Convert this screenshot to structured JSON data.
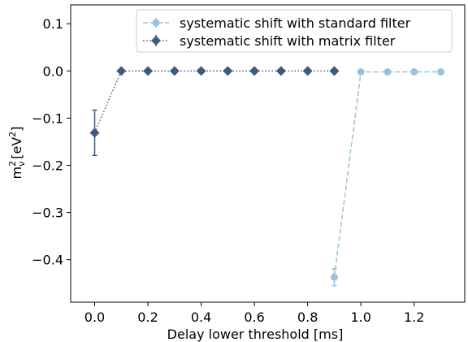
{
  "chart_data": {
    "type": "line",
    "xlabel": "Delay lower threshold [ms]",
    "ylabel": "m",
    "ylabel_super": "2",
    "ylabel_sub": "ν",
    "ylabel_units_open": "[eV",
    "ylabel_units_super": "2",
    "ylabel_units_close": "]",
    "xlim": [
      -0.09,
      1.39
    ],
    "ylim": [
      -0.49,
      0.14
    ],
    "xticks": [
      0.0,
      0.2,
      0.4,
      0.6,
      0.8,
      1.0,
      1.2
    ],
    "xtick_labels": [
      "0.0",
      "0.2",
      "0.4",
      "0.6",
      "0.8",
      "1.0",
      "1.2"
    ],
    "yticks": [
      0.1,
      0.0,
      -0.1,
      -0.2,
      -0.3,
      -0.4
    ],
    "ytick_labels": [
      "0.1",
      "0.0",
      "−0.1",
      "−0.2",
      "−0.3",
      "−0.4"
    ],
    "grid": false,
    "legend_position": "top-right",
    "series": [
      {
        "name": "systematic shift with standard filter",
        "color": "#9bc2dc",
        "marker": "circle",
        "linestyle": "dashed",
        "x": [
          0.9,
          1.0,
          1.1,
          1.2,
          1.3
        ],
        "y": [
          -0.437,
          -0.002,
          -0.002,
          -0.002,
          -0.002
        ],
        "yerr": [
          0.018,
          0.003,
          0.003,
          0.003,
          0.003
        ]
      },
      {
        "name": "systematic shift with matrix filter",
        "color": "#3d5a80",
        "marker": "diamond",
        "linestyle": "dotted",
        "x": [
          0.0,
          0.1,
          0.2,
          0.3,
          0.4,
          0.5,
          0.6,
          0.7,
          0.8,
          0.9
        ],
        "y": [
          -0.131,
          0.0,
          0.0,
          0.0,
          0.0,
          0.0,
          0.0,
          0.0,
          0.0,
          0.0
        ],
        "yerr": [
          0.048,
          0.0,
          0.0,
          0.0,
          0.0,
          0.0,
          0.0,
          0.0,
          0.0,
          0.0
        ]
      }
    ]
  }
}
